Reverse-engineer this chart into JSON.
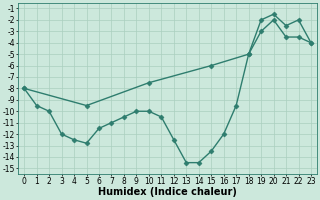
{
  "xlabel": "Humidex (Indice chaleur)",
  "xlim": [
    -0.5,
    23.5
  ],
  "ylim": [
    -15.5,
    -0.5
  ],
  "yticks": [
    -15,
    -14,
    -13,
    -12,
    -11,
    -10,
    -9,
    -8,
    -7,
    -6,
    -5,
    -4,
    -3,
    -2,
    -1
  ],
  "xticks": [
    0,
    1,
    2,
    3,
    4,
    5,
    6,
    7,
    8,
    9,
    10,
    11,
    12,
    13,
    14,
    15,
    16,
    17,
    18,
    19,
    20,
    21,
    22,
    23
  ],
  "line1_x": [
    0,
    1,
    2,
    3,
    4,
    5,
    6,
    7,
    8,
    9,
    10,
    11,
    12,
    13,
    14,
    15,
    16,
    17,
    18,
    19,
    20,
    21,
    22,
    23
  ],
  "line1_y": [
    -8,
    -9.5,
    -10,
    -12,
    -12.5,
    -12.8,
    -11.5,
    -11,
    -10.5,
    -10,
    -10,
    -10.5,
    -12.5,
    -14.5,
    -14.5,
    -13.5,
    -12,
    -9.5,
    -5,
    -2,
    -1.5,
    -2.5,
    -2,
    -4
  ],
  "line2_x": [
    0,
    5,
    10,
    15,
    18,
    19,
    20,
    21,
    22,
    23
  ],
  "line2_y": [
    -8,
    -9.5,
    -7.5,
    -6.0,
    -5.0,
    -3.0,
    -2.0,
    -3.5,
    -3.5,
    -4.0
  ],
  "line_color": "#2e7d6e",
  "bg_color": "#cce8dc",
  "grid_color": "#aacfbf",
  "marker": "D",
  "marker_size": 2.5,
  "linewidth": 1.0,
  "xlabel_fontsize": 7,
  "tick_fontsize": 5.5
}
